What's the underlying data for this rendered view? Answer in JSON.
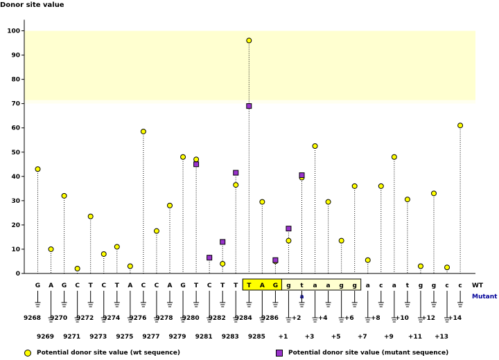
{
  "chart_data": {
    "type": "scatter",
    "title": "Donor site value",
    "ylim": [
      0,
      100
    ],
    "yticks": [
      0,
      10,
      20,
      30,
      40,
      50,
      60,
      70,
      80,
      90,
      100
    ],
    "highlight_band": {
      "from": 70,
      "to": 100,
      "color_strong": "#ffffd0",
      "color_weak": "#fffff0"
    },
    "colors": {
      "wt": "#ffff00",
      "mutant": "#9933cc",
      "mutant_label": "#000099",
      "highlight_box": "#ffff00"
    },
    "sequence_label_wt": "WT",
    "sequence_label_mutant": "Mutant",
    "positions": [
      {
        "base": "G",
        "pos": "9268",
        "wt": 43,
        "mutant": null
      },
      {
        "base": "A",
        "pos": "9269",
        "wt": 10,
        "mutant": null
      },
      {
        "base": "G",
        "pos": "9270",
        "wt": 32,
        "mutant": null
      },
      {
        "base": "C",
        "pos": "9271",
        "wt": 2,
        "mutant": null
      },
      {
        "base": "T",
        "pos": "9272",
        "wt": 23.5,
        "mutant": null
      },
      {
        "base": "C",
        "pos": "9273",
        "wt": 8,
        "mutant": null
      },
      {
        "base": "T",
        "pos": "9274",
        "wt": 11,
        "mutant": null
      },
      {
        "base": "A",
        "pos": "9275",
        "wt": 3,
        "mutant": null
      },
      {
        "base": "C",
        "pos": "9276",
        "wt": 58.5,
        "mutant": null
      },
      {
        "base": "C",
        "pos": "9277",
        "wt": 17.5,
        "mutant": null
      },
      {
        "base": "A",
        "pos": "9278",
        "wt": 28,
        "mutant": null
      },
      {
        "base": "G",
        "pos": "9279",
        "wt": 48,
        "mutant": null
      },
      {
        "base": "T",
        "pos": "9280",
        "wt": 47,
        "mutant": 45
      },
      {
        "base": "C",
        "pos": "9281",
        "wt": 6.5,
        "mutant": 6.5
      },
      {
        "base": "T",
        "pos": "9282",
        "wt": 4,
        "mutant": 13
      },
      {
        "base": "T",
        "pos": "9283",
        "wt": 36.5,
        "mutant": 41.5
      },
      {
        "base": "T",
        "pos": "9284",
        "wt": 96,
        "mutant": 69,
        "boxed": true
      },
      {
        "base": "A",
        "pos": "9285",
        "wt": 29.5,
        "mutant": null,
        "boxed": true
      },
      {
        "base": "G",
        "pos": "9286",
        "wt": 5,
        "mutant": 5.5,
        "boxed": true
      },
      {
        "base": "g",
        "pos": "+1",
        "wt": 13.5,
        "mutant": 18.5,
        "boxed": true
      },
      {
        "base": "t",
        "pos": "+2",
        "wt": 39.5,
        "mutant": 40.5,
        "mutant_base": "a",
        "boxed": true
      },
      {
        "base": "a",
        "pos": "+3",
        "wt": 52.5,
        "mutant": null,
        "boxed": true
      },
      {
        "base": "a",
        "pos": "+4",
        "wt": 29.5,
        "mutant": null,
        "boxed": true
      },
      {
        "base": "g",
        "pos": "+5",
        "wt": 13.5,
        "mutant": null,
        "boxed": true
      },
      {
        "base": "g",
        "pos": "+6",
        "wt": 36,
        "mutant": null,
        "boxed": true
      },
      {
        "base": "a",
        "pos": "+7",
        "wt": 5.5,
        "mutant": null
      },
      {
        "base": "c",
        "pos": "+8",
        "wt": 36,
        "mutant": null
      },
      {
        "base": "a",
        "pos": "+9",
        "wt": 48,
        "mutant": null
      },
      {
        "base": "t",
        "pos": "+10",
        "wt": 30.5,
        "mutant": null
      },
      {
        "base": "g",
        "pos": "+11",
        "wt": 3,
        "mutant": null
      },
      {
        "base": "g",
        "pos": "+12",
        "wt": 33,
        "mutant": null
      },
      {
        "base": "c",
        "pos": "+13",
        "wt": 2.5,
        "mutant": null
      },
      {
        "base": "c",
        "pos": "+14",
        "wt": 61,
        "mutant": null
      }
    ],
    "legend": [
      {
        "symbol": "circle",
        "label": "Potential donor site value (wt sequence)"
      },
      {
        "symbol": "square",
        "label": "Potential donor site value (mutant sequence)"
      }
    ]
  }
}
